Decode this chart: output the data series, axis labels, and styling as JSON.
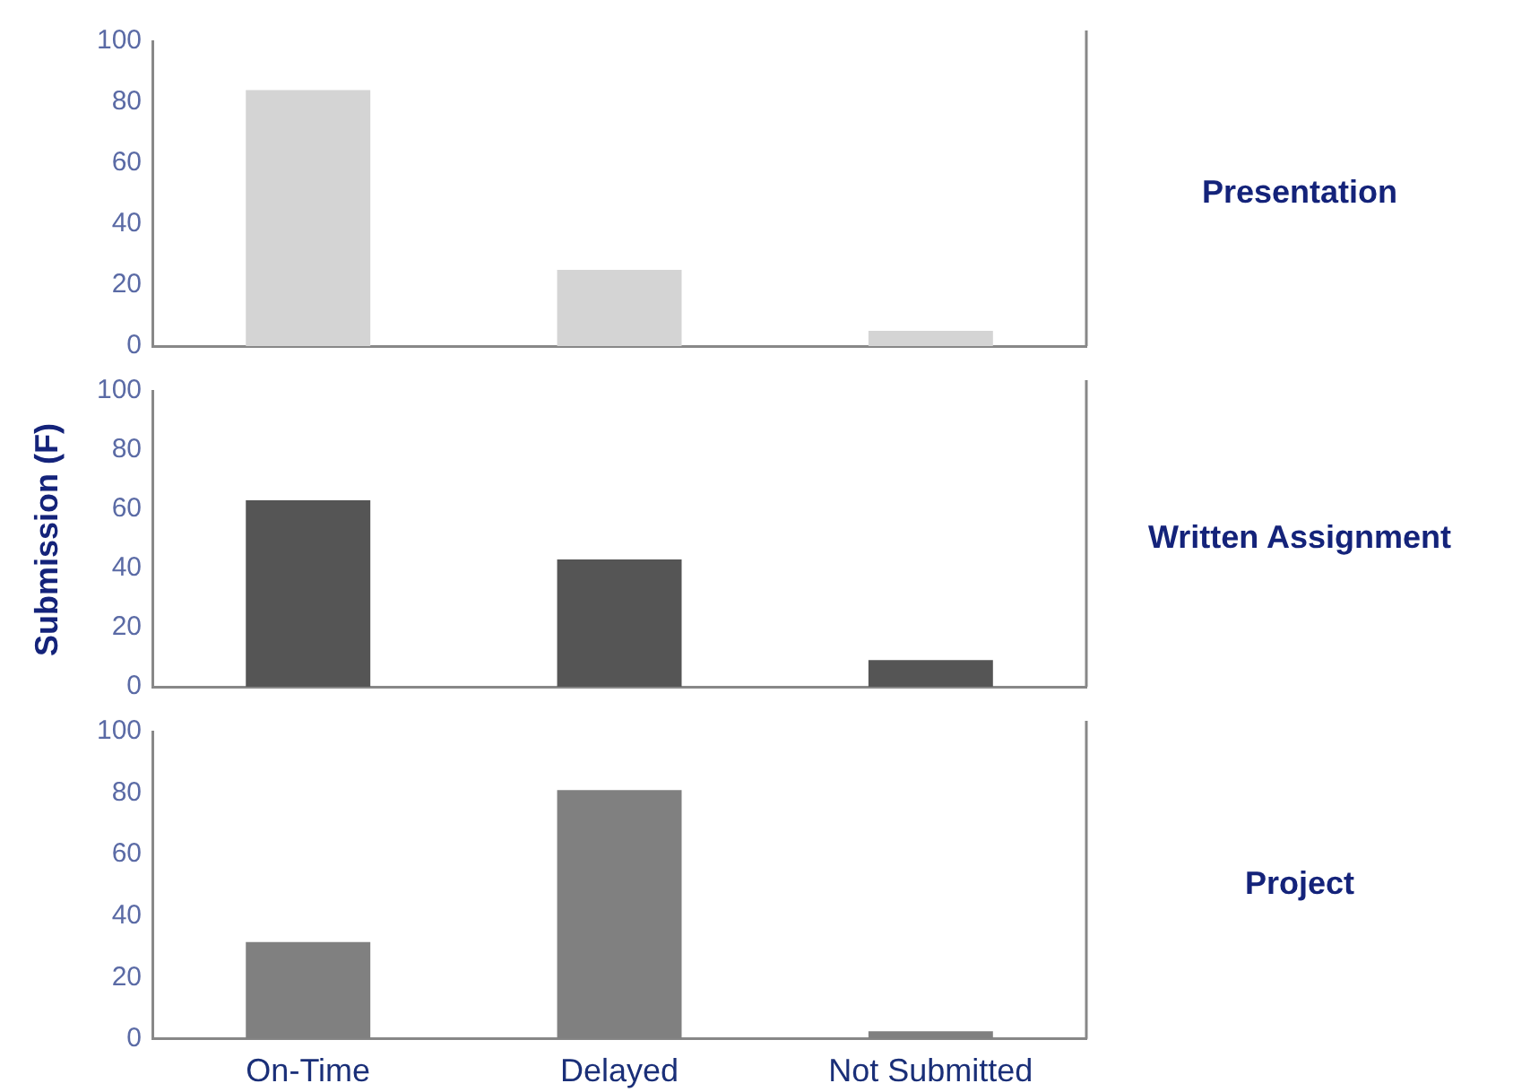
{
  "chart_data": [
    {
      "type": "bar",
      "annotations": [
        "Presentation"
      ],
      "categories": [
        null,
        null,
        null
      ],
      "values": [
        84,
        25,
        5
      ],
      "color": "#d4d4d4",
      "ylim": [
        0,
        100
      ],
      "yticks": [
        0,
        20,
        40,
        60,
        80,
        100
      ],
      "grid": false,
      "tick_labels": "y"
    },
    {
      "type": "bar",
      "annotations": [
        "Written Assignment"
      ],
      "ylabel": "Submission (F)",
      "categories": [
        null,
        null,
        null
      ],
      "values": [
        63,
        43,
        9
      ],
      "color": "#555555",
      "ylim": [
        0,
        100
      ],
      "yticks": [
        0,
        20,
        40,
        60,
        80,
        100
      ],
      "grid": false,
      "tick_labels": "y"
    },
    {
      "type": "bar",
      "annotations": [
        "Project"
      ],
      "categories": [
        "On-Time",
        "Delayed",
        "Not Submitted"
      ],
      "values": [
        31.5,
        81,
        2.5
      ],
      "color": "#808080",
      "ylim": [
        0,
        100
      ],
      "yticks": [
        0,
        20,
        40,
        60,
        80,
        100
      ],
      "grid": false
    }
  ]
}
